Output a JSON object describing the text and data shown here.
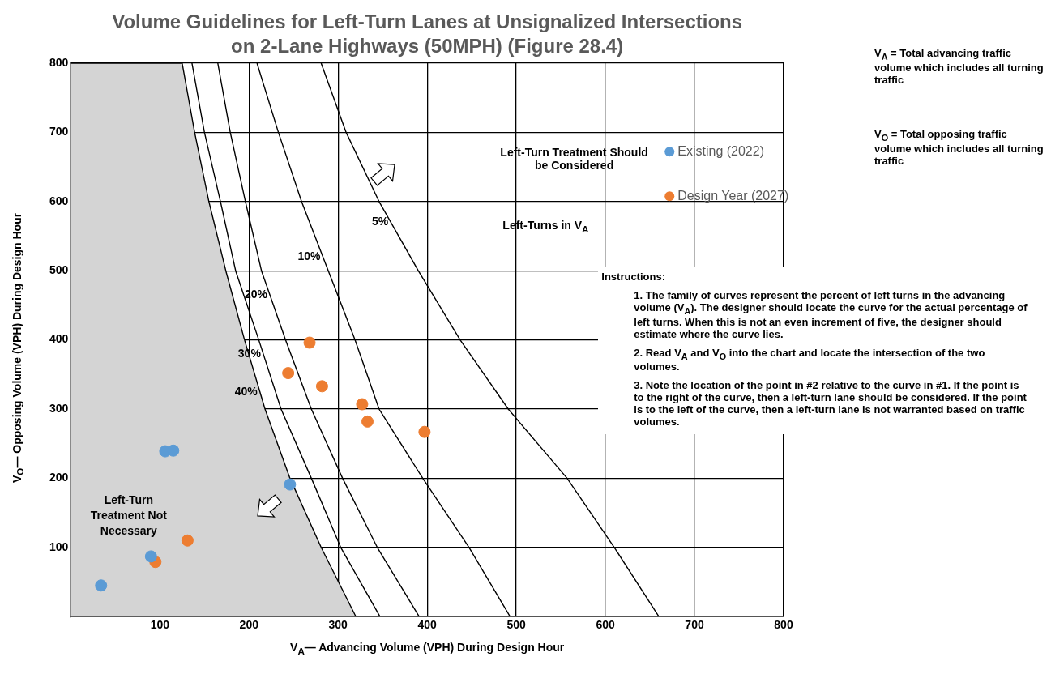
{
  "chart_data": {
    "type": "line",
    "title": "Volume Guidelines for Left-Turn Lanes at Unsignalized Intersections on 2-Lane Highways (50MPH) (Figure 28.4)",
    "xlabel": "V$_{A}$— Advancing Volume (VPH) During Design Hour",
    "ylabel": "V$_{O}$— Opposing Volume (VPH) During Design Hour",
    "xlim": [
      0,
      800
    ],
    "ylim": [
      0,
      800
    ],
    "xticks": [
      100,
      200,
      300,
      400,
      500,
      600,
      700,
      800
    ],
    "yticks": [
      100,
      200,
      300,
      400,
      500,
      600,
      700,
      800
    ],
    "grid": true,
    "legend": "top right",
    "line_style": "solid",
    "series": [
      {
        "name": "5%",
        "color": "#000000",
        "x": [
          281,
          309,
          346,
          390,
          437,
          491,
          557,
          610,
          660
        ],
        "values": [
          800,
          700,
          600,
          500,
          400,
          300,
          200,
          100,
          0
        ]
      },
      {
        "name": "10%",
        "color": "#000000",
        "x": [
          209,
          233,
          259,
          289,
          319,
          346,
          395,
          447,
          493
        ],
        "values": [
          800,
          700,
          600,
          500,
          400,
          300,
          200,
          100,
          0
        ]
      },
      {
        "name": "20%",
        "color": "#000000",
        "x": [
          165,
          179,
          196,
          214,
          241,
          270,
          305,
          344,
          391
        ],
        "values": [
          800,
          700,
          600,
          500,
          400,
          300,
          200,
          100,
          0
        ]
      },
      {
        "name": "30%",
        "color": "#000000",
        "x": [
          136,
          150,
          168,
          185,
          211,
          236,
          270,
          303,
          347
        ],
        "values": [
          800,
          700,
          600,
          500,
          400,
          300,
          200,
          100,
          0
        ]
      },
      {
        "type": "area",
        "name": "40%",
        "color": "#d4d4d4",
        "x": [
          0,
          125,
          139,
          155,
          174,
          195,
          218,
          246,
          281,
          320
        ],
        "values": [
          800,
          800,
          700,
          600,
          500,
          400,
          300,
          200,
          100,
          0
        ]
      },
      {
        "type": "scatter",
        "marker": "circle",
        "name": "Existing (2022)",
        "color": "#5b9bd5",
        "x": [
          34,
          90,
          106,
          115,
          246
        ],
        "values": [
          45,
          87,
          239,
          240,
          191
        ]
      },
      {
        "type": "scatter",
        "marker": "circle",
        "name": "Design Year (2027)",
        "color": "#ed7d31",
        "x": [
          131,
          95,
          268,
          244,
          282,
          327,
          333,
          397
        ],
        "values": [
          110,
          79,
          396,
          352,
          333,
          307,
          282,
          267
        ]
      }
    ],
    "annotations": [
      "Left-Turn Treatment Should be Considered",
      "Left-Turns in V$_{A}$",
      "Left-Turn Treatment Not Necessary",
      "V$_{A}$ = Total advancing traffic volume which includes all turning traffic",
      "V$_{O}$ = Total opposing traffic volume which includes all turning traffic",
      "Instructions:",
      "1. The family of curves represent the percent of left turns in the advancing volume (V$_{A}$). The designer should locate the curve for the actual percentage of left turns. When this is not an even increment of five, the designer should estimate where the curve lies.",
      "2. Read V$_{A}$ and V$_{O}$ into the chart and locate the intersection of the two volumes.",
      "3. Note the location of the point in #2 relative to the curve in #1. If the point is to the right of the curve, then a left-turn lane should be considered. If the point is to the left of the curve, then a left-turn lane is not warranted based on traffic volumes."
    ]
  }
}
